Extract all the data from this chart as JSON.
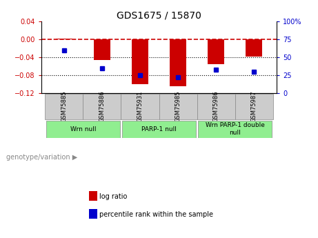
{
  "title": "GDS1675 / 15870",
  "samples": [
    "GSM75885",
    "GSM75886",
    "GSM75931",
    "GSM75985",
    "GSM75986",
    "GSM75987"
  ],
  "log_ratios": [
    0.001,
    -0.046,
    -0.1,
    -0.105,
    -0.055,
    -0.038
  ],
  "percentile_ranks": [
    60,
    35,
    25,
    22,
    33,
    30
  ],
  "bar_color": "#cc0000",
  "dot_color": "#0000cc",
  "ylim_left": [
    -0.12,
    0.04
  ],
  "ylim_right": [
    0,
    100
  ],
  "yticks_left": [
    0.04,
    0,
    -0.04,
    -0.08,
    -0.12
  ],
  "yticks_right": [
    100,
    75,
    50,
    25,
    0
  ],
  "legend_labels": [
    "log ratio",
    "percentile rank within the sample"
  ],
  "genotype_label": "genotype/variation",
  "bar_width": 0.45,
  "hline_y": 0,
  "hline_color": "#cc0000",
  "hline_style": "--",
  "dotted_hlines": [
    -0.04,
    -0.08
  ],
  "dotted_color": "black",
  "bg_color": "#ffffff",
  "plot_bg_color": "#ffffff",
  "sample_box_color": "#cccccc",
  "group_box_color": "#90ee90",
  "right_tick_color": "#0000cc",
  "left_tick_color": "#cc0000",
  "group_defs": [
    {
      "label": "Wrn null",
      "start": 0,
      "end": 1
    },
    {
      "label": "PARP-1 null",
      "start": 2,
      "end": 3
    },
    {
      "label": "Wrn PARP-1 double\nnull",
      "start": 4,
      "end": 5
    }
  ]
}
